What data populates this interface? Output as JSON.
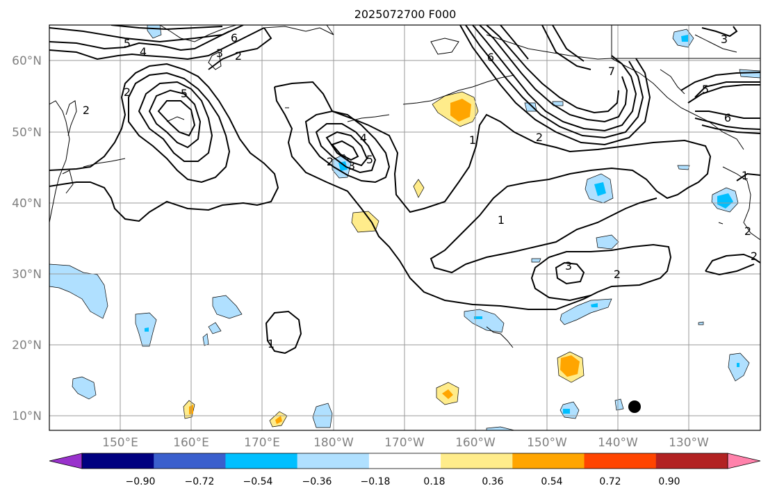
{
  "map": {
    "title": "2025072700 F000",
    "lat_labels": [
      "60°N",
      "50°N",
      "40°N",
      "30°N",
      "20°N",
      "10°N"
    ],
    "lon_labels": [
      "150°E",
      "160°E",
      "170°E",
      "180°W",
      "170°W",
      "160°W",
      "150°W",
      "140°W",
      "130°W"
    ],
    "contour_labels": [
      "5",
      "6",
      "4",
      "3",
      "2",
      "2",
      "5",
      "2",
      "4",
      "5",
      "3",
      "2",
      "6",
      "7",
      "5",
      "6",
      "3",
      "1",
      "2",
      "1",
      "1",
      "3",
      "2",
      "2",
      "1",
      "2"
    ]
  },
  "colorbar": {
    "tick_labels": [
      "−0.90",
      "−0.72",
      "−0.54",
      "−0.36",
      "−0.18",
      "0.18",
      "0.36",
      "0.54",
      "0.72",
      "0.90"
    ],
    "colors": [
      "#9932cc",
      "#000080",
      "#3a5fcd",
      "#00bfff",
      "#b0e0ff",
      "#ffffff",
      "#ffec8b",
      "#ffa500",
      "#ff4500",
      "#b22222",
      "#ff82ab"
    ]
  },
  "chart_data": {
    "type": "heatmap",
    "title": "2025072700 F000",
    "levels": [
      -0.9,
      -0.72,
      -0.54,
      -0.36,
      -0.18,
      0.18,
      0.36,
      0.54,
      0.72,
      0.9
    ],
    "lon_range": [
      "140°E",
      "115°W"
    ],
    "lat_range": [
      "8°N",
      "65°N"
    ],
    "grid": true,
    "contour_levels": [
      1,
      2,
      3,
      4,
      5,
      6,
      7
    ],
    "marker": {
      "lon": "138°W",
      "lat": "11°N"
    }
  }
}
